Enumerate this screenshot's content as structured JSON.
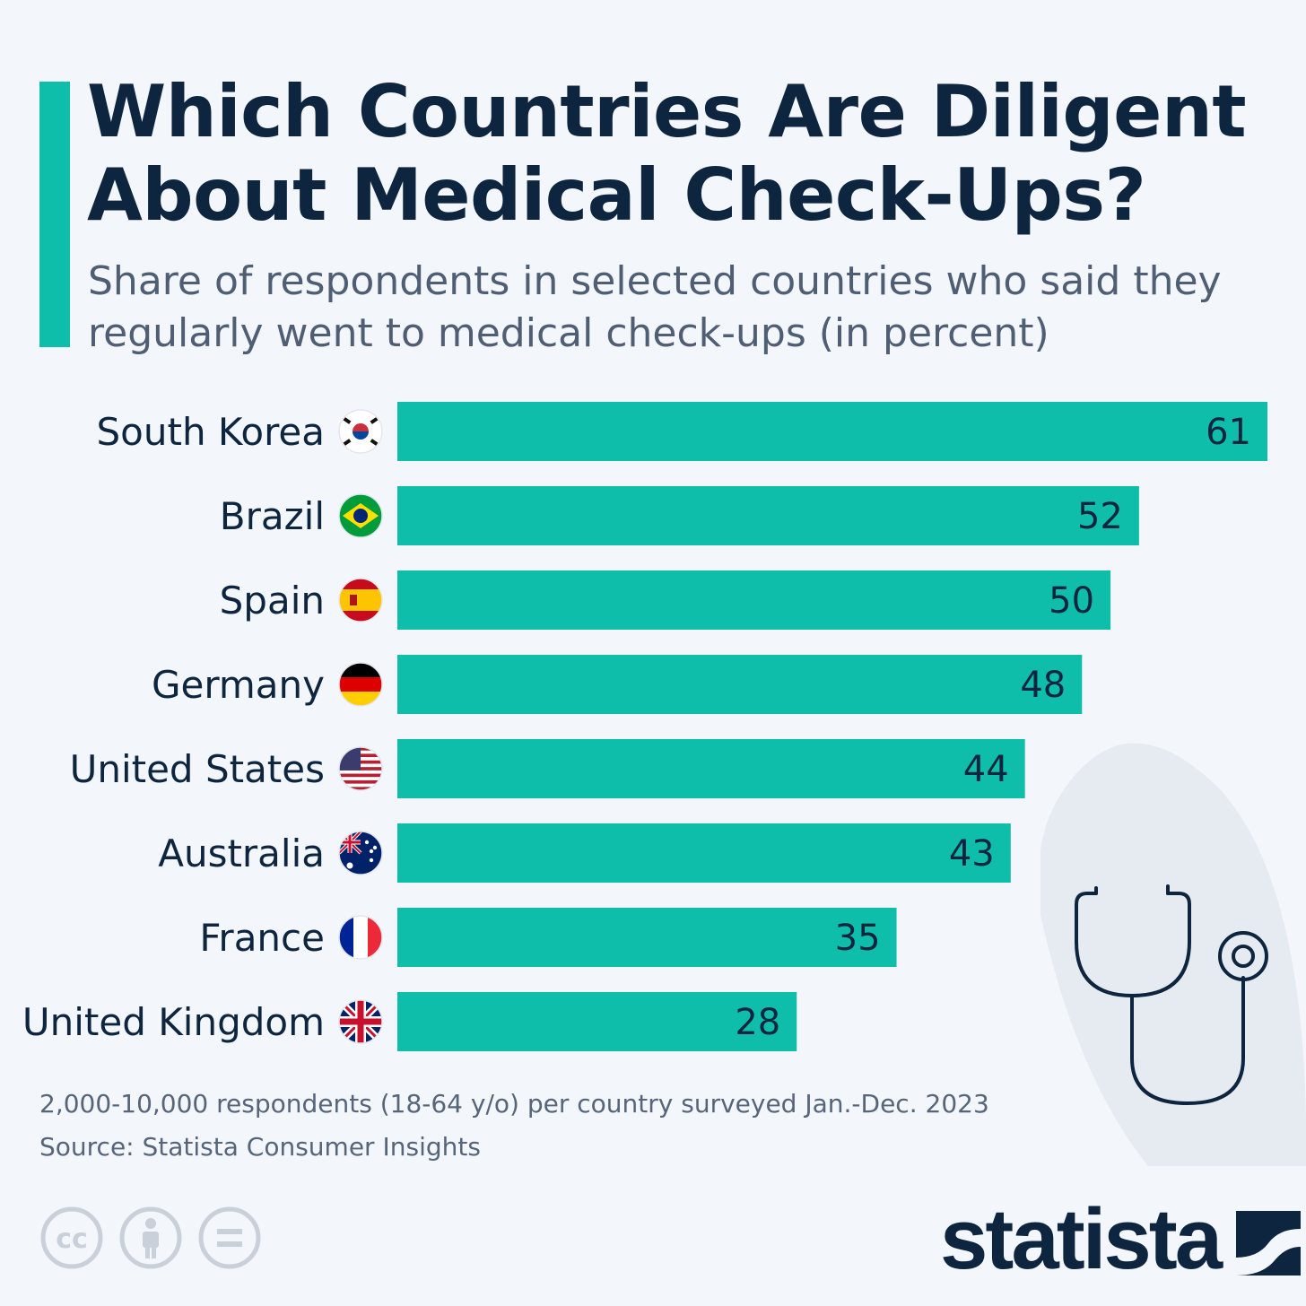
{
  "header": {
    "title": "Which Countries Are Diligent About Medical Check-Ups?",
    "subtitle": "Share of respondents in selected countries who said they regularly went to medical check-ups (in percent)"
  },
  "chart_data": {
    "type": "bar",
    "orientation": "horizontal",
    "title": "Which Countries Are Diligent About Medical Check-Ups?",
    "subtitle": "Share of respondents in selected countries who said they regularly went to medical check-ups (in percent)",
    "unit": "percent",
    "categories": [
      "South Korea",
      "Brazil",
      "Spain",
      "Germany",
      "United States",
      "Australia",
      "France",
      "United Kingdom"
    ],
    "values": [
      61,
      52,
      50,
      48,
      44,
      43,
      35,
      28
    ],
    "flags": [
      "south-korea-flag-icon",
      "brazil-flag-icon",
      "spain-flag-icon",
      "germany-flag-icon",
      "united-states-flag-icon",
      "australia-flag-icon",
      "france-flag-icon",
      "united-kingdom-flag-icon"
    ],
    "xlim": [
      0,
      61
    ],
    "grid": false,
    "legend": "none",
    "bar_color": "#0fbeaa"
  },
  "footer": {
    "note": "2,000-10,000 respondents (18-64 y/o) per country surveyed Jan.-Dec. 2023",
    "source": "Source: Statista Consumer Insights",
    "brand": "statista"
  },
  "colors": {
    "accent": "#0fbeaa",
    "text": "#0e2540",
    "muted": "#56657a",
    "background": "#f3f6fa"
  }
}
